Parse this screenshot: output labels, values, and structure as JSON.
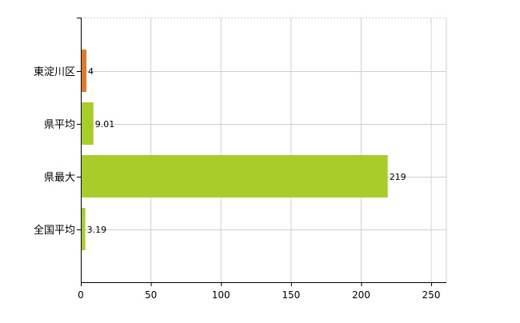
{
  "chart_data": {
    "type": "bar",
    "orientation": "horizontal",
    "categories": [
      "東淀川区",
      "県平均",
      "県最大",
      "全国平均"
    ],
    "values": [
      4,
      9.01,
      219,
      3.19
    ],
    "value_labels": [
      "4",
      "9.01",
      "219",
      "3.19"
    ],
    "bar_colors": [
      "#E07A2A",
      "#A8CC2A",
      "#A8CC2A",
      "#A8CC2A"
    ],
    "xlim": [
      0,
      250
    ],
    "xticks": [
      0,
      50,
      100,
      150,
      200,
      250
    ],
    "xtick_labels": [
      "0",
      "50",
      "100",
      "150",
      "200",
      "250"
    ],
    "grid": true,
    "title": "",
    "xlabel": "",
    "ylabel": ""
  }
}
